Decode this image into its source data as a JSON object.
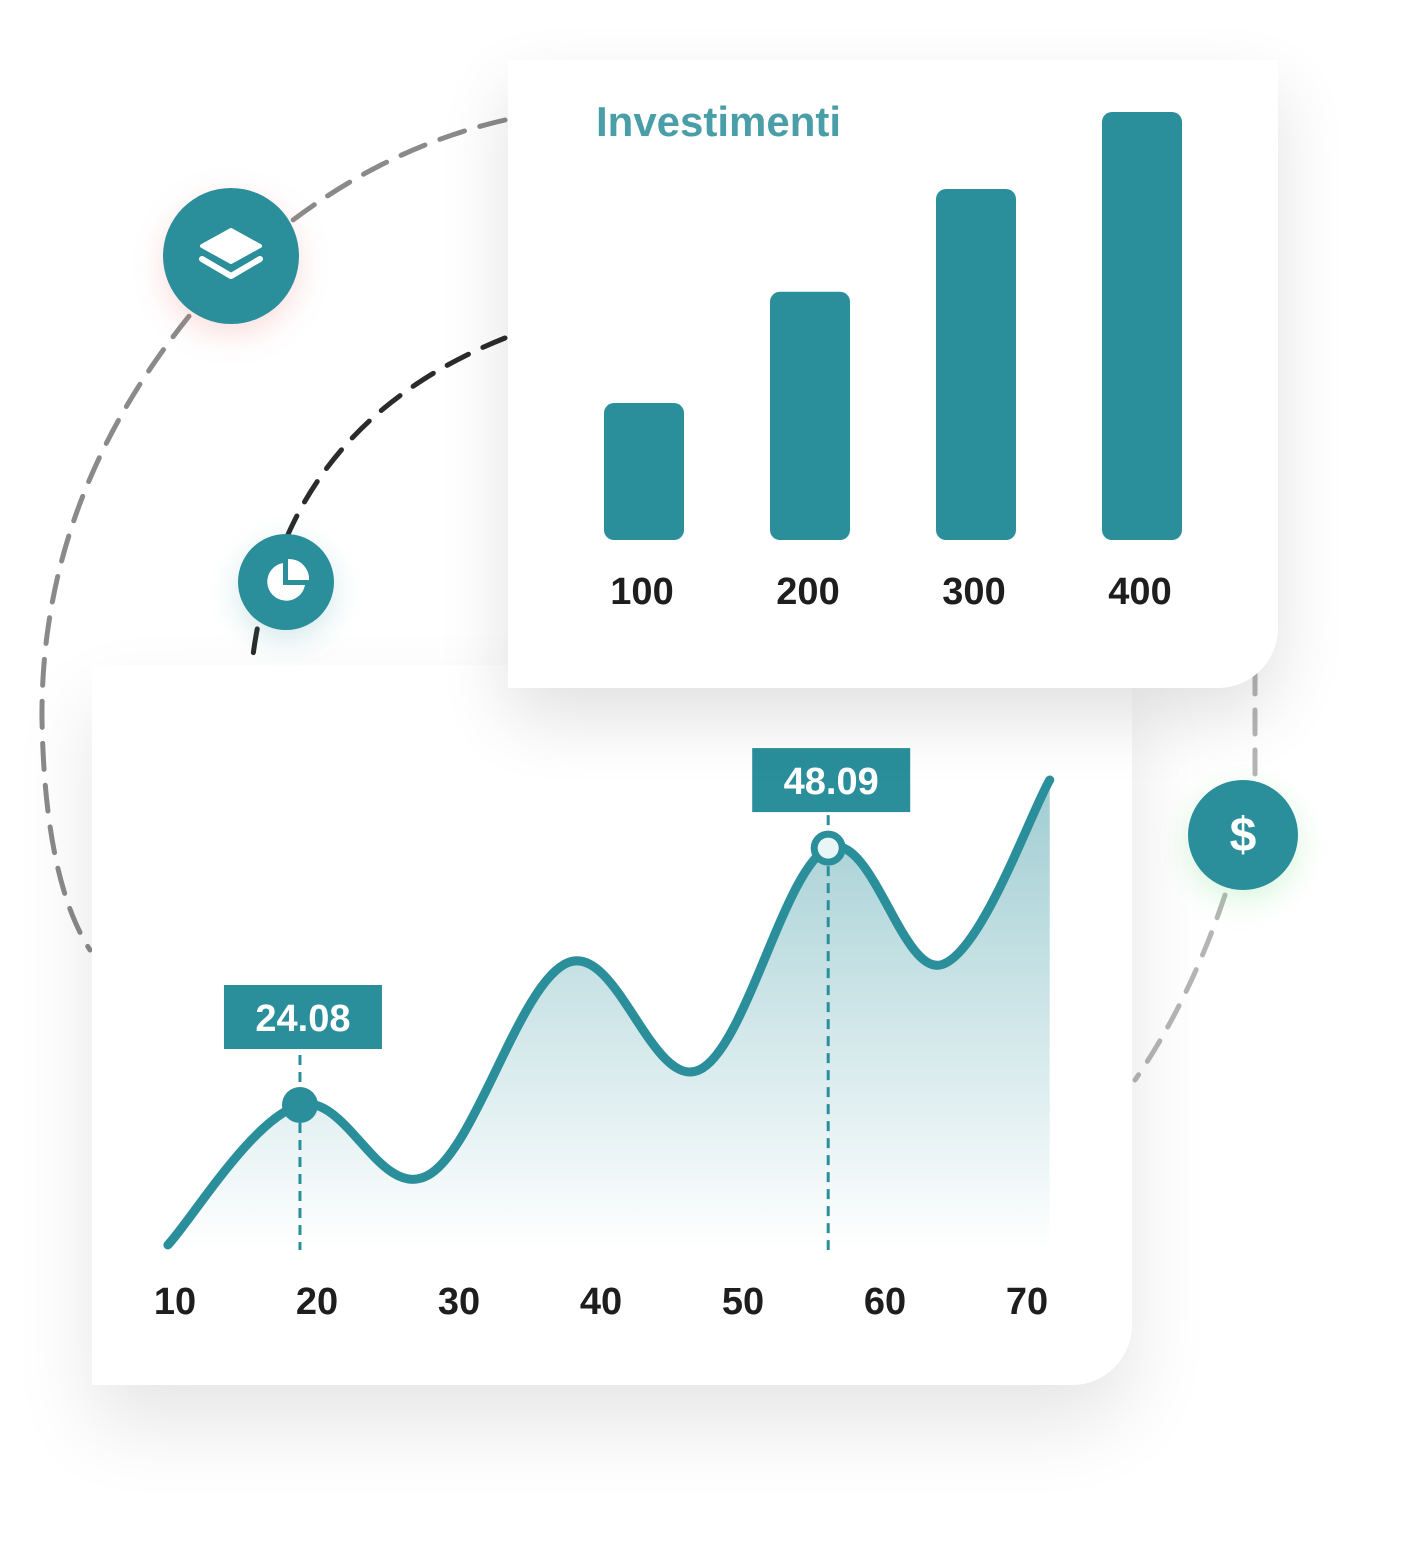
{
  "colors": {
    "accent": "#2a8f9b",
    "title": "#4a9ea8",
    "text": "#1e1e1e",
    "dash_dark": "#2b2b2b",
    "dash_light": "#c8c8c8"
  },
  "icons": [
    "layers-icon",
    "pie-chart-icon",
    "dollar-icon"
  ],
  "dollar_symbol": "$",
  "chart_data": [
    {
      "type": "bar",
      "title": "Investimenti",
      "categories": [
        "100",
        "200",
        "300",
        "400"
      ],
      "values": [
        32,
        58,
        82,
        100
      ],
      "grid": false
    },
    {
      "type": "area",
      "x_ticks": [
        "10",
        "20",
        "30",
        "40",
        "50",
        "60",
        "70"
      ],
      "xlim": [
        9.5,
        71.6
      ],
      "points": [
        [
          9.5,
          11.0
        ],
        [
          18.8,
          24.08
        ],
        [
          27.8,
          17.5
        ],
        [
          37.7,
          37.4
        ],
        [
          46.9,
          27.35
        ],
        [
          56.0,
          48.09
        ],
        [
          64.0,
          37.2
        ],
        [
          71.6,
          54.45
        ]
      ],
      "annotations": [
        {
          "x": 18.8,
          "y": 24.08,
          "label": "24.08"
        },
        {
          "x": 56.0,
          "y": 48.09,
          "label": "48.09"
        }
      ],
      "grid": false
    }
  ]
}
